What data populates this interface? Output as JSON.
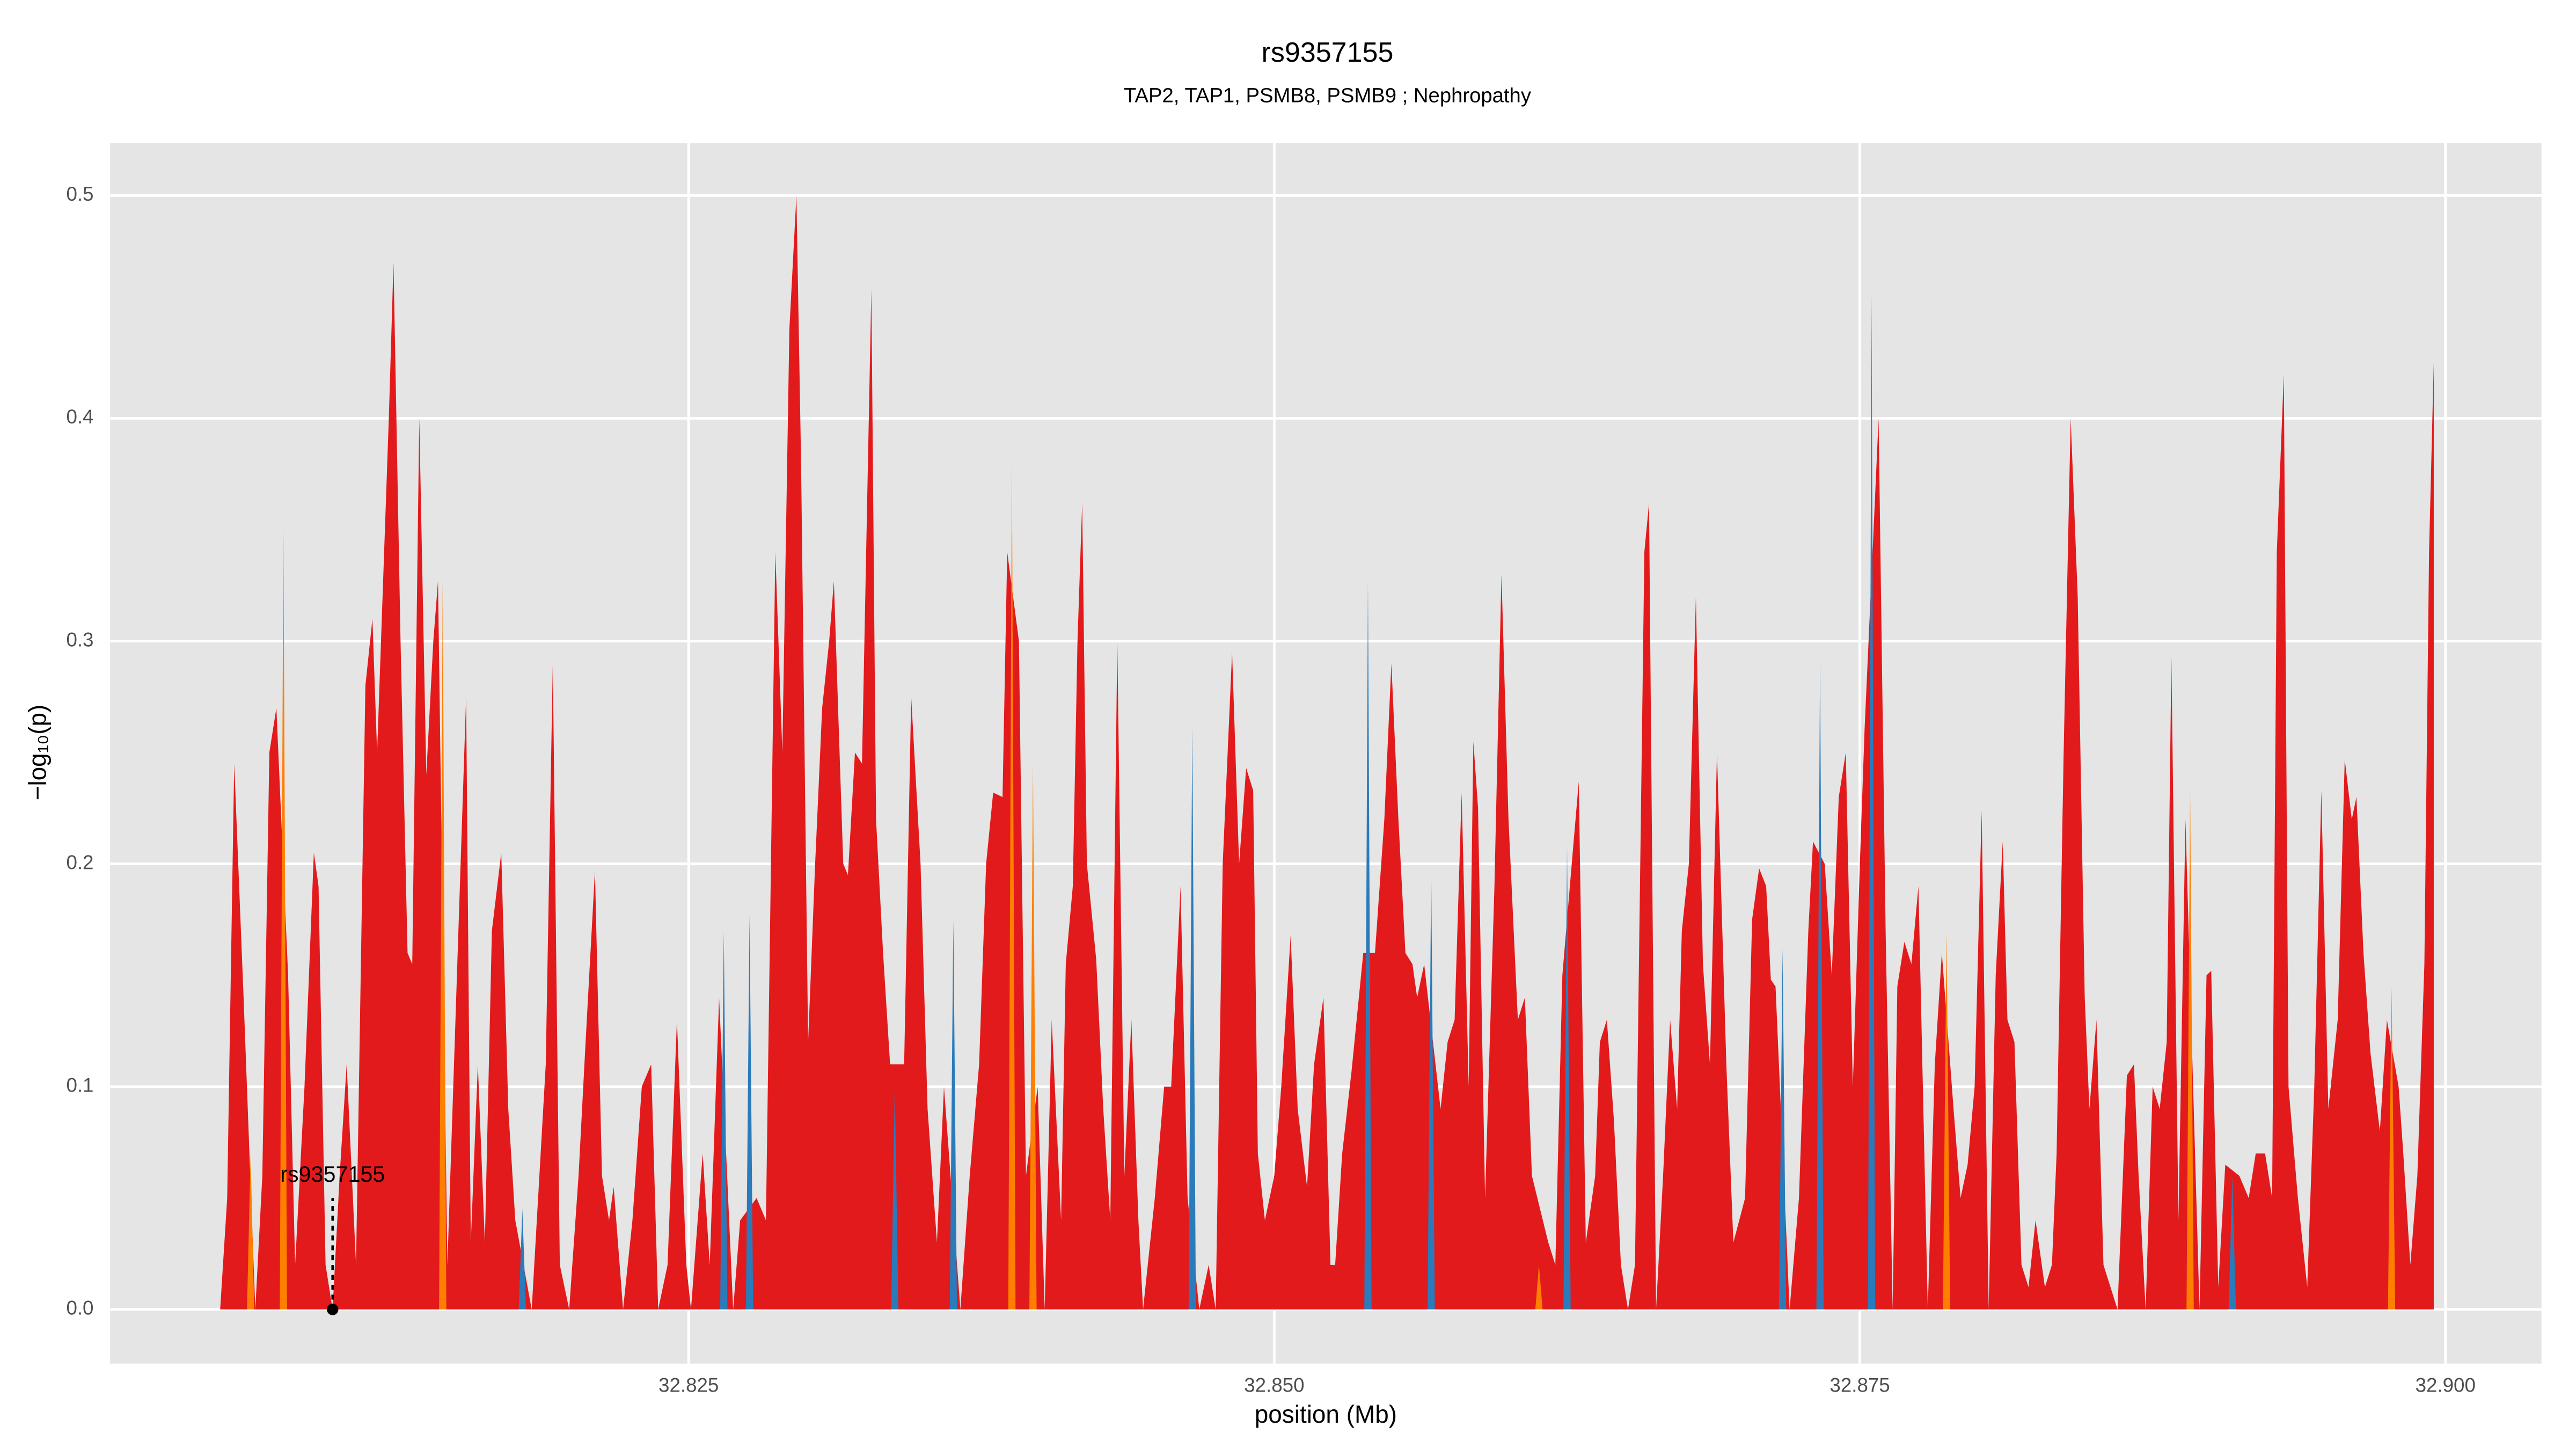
{
  "chart_data": {
    "type": "area",
    "title": "rs9357155",
    "subtitle": "TAP2, TAP1, PSMB8, PSMB9 ; Nephropathy",
    "x_label": "position (Mb)",
    "y_label": "−log₁₀(p)",
    "xlim": [
      32.8003,
      32.9041
    ],
    "ylim": [
      -0.0243,
      0.5236
    ],
    "xticks": [
      32.825,
      {
        "value": 32.85,
        "label": "32.850"
      },
      32.875,
      {
        "value": 32.9,
        "label": "32.900"
      }
    ],
    "yticks": [
      {
        "value": 0,
        "label": "0.0"
      },
      0.1,
      0.2,
      0.3,
      0.4,
      0.5
    ],
    "grid": true,
    "series": [
      {
        "color": "#e31a1c",
        "x": [
          32.805,
          32.8053,
          32.8056,
          32.806,
          32.8065,
          32.8068,
          32.8071,
          32.8074,
          32.8079,
          32.8082,
          32.8086,
          32.809,
          32.8092,
          32.8095,
          32.8098,
          32.8101,
          32.8104,
          32.8108,
          32.8112,
          32.8115,
          32.8117,
          32.8122,
          32.8124,
          32.8127,
          32.813,
          32.8132,
          32.8135,
          32.8138,
          32.8141,
          32.8143,
          32.8147,
          32.8155,
          32.8157,
          32.816,
          32.8163,
          32.8166,
          32.817,
          32.8173,
          32.8176,
          32.8183,
          32.8189,
          32.8192,
          32.8195,
          32.8199,
          32.8203,
          32.8206,
          32.821,
          32.8213,
          32.8216,
          32.8218,
          32.8222,
          32.8226,
          32.823,
          32.8234,
          32.8237,
          32.8241,
          32.8245,
          32.8249,
          32.8251,
          32.8256,
          32.8259,
          32.8263,
          32.8269,
          32.8272,
          32.8279,
          32.8283,
          32.8287,
          32.829,
          32.8293,
          32.8296,
          32.8298,
          32.8301,
          32.8304,
          32.8307,
          32.831,
          32.8312,
          32.8316,
          32.8318,
          32.8321,
          32.8324,
          32.8328,
          32.833,
          32.8333,
          32.8336,
          32.8342,
          32.8345,
          32.8349,
          32.8352,
          32.8356,
          32.8359,
          32.8366,
          32.837,
          32.8374,
          32.8377,
          32.838,
          32.8384,
          32.8386,
          32.8391,
          32.8394,
          32.8399,
          32.8402,
          32.8405,
          32.8409,
          32.8411,
          32.8414,
          32.8416,
          32.8418,
          32.842,
          32.8424,
          32.8427,
          32.843,
          32.8433,
          32.8436,
          32.8439,
          32.8442,
          32.8444,
          32.8449,
          32.8453,
          32.8456,
          32.846,
          32.8463,
          32.8468,
          32.8472,
          32.8475,
          32.8478,
          32.8482,
          32.8485,
          32.8488,
          32.8491,
          32.8493,
          32.8496,
          32.85,
          32.8503,
          32.8507,
          32.851,
          32.8514,
          32.8517,
          32.8521,
          32.8524,
          32.8526,
          32.8529,
          32.8533,
          32.8538,
          32.8543,
          32.8547,
          32.855,
          32.8553,
          32.8556,
          32.8559,
          32.8561,
          32.8564,
          32.8571,
          32.8574,
          32.8577,
          32.858,
          32.8583,
          32.8585,
          32.8587,
          32.859,
          32.8594,
          32.8597,
          32.86,
          32.8604,
          32.8607,
          32.861,
          32.8617,
          32.862,
          32.8623,
          32.8627,
          32.863,
          32.8633,
          32.8637,
          32.8639,
          32.8642,
          32.8645,
          32.8648,
          32.8651,
          32.8654,
          32.8658,
          32.866,
          32.8663,
          32.8666,
          32.8669,
          32.8672,
          32.8674,
          32.8677,
          32.868,
          32.8683,
          32.8686,
          32.8689,
          32.8693,
          32.8696,
          32.8701,
          32.8704,
          32.8707,
          32.871,
          32.8712,
          32.8714,
          32.872,
          32.8724,
          32.8728,
          32.873,
          32.8735,
          32.8738,
          32.8741,
          32.8744,
          32.8747,
          32.875,
          32.8752,
          32.8758,
          32.8761,
          32.8764,
          32.8766,
          32.8769,
          32.8772,
          32.8775,
          32.8779,
          32.8782,
          32.8785,
          32.879,
          32.8793,
          32.8796,
          32.8799,
          32.8802,
          32.8805,
          32.8808,
          32.8811,
          32.8813,
          32.8816,
          32.8819,
          32.8822,
          32.8825,
          32.8829,
          32.8832,
          32.8834,
          32.8837,
          32.884,
          32.8843,
          32.8846,
          32.8848,
          32.8851,
          32.8854,
          32.886,
          32.8864,
          32.8867,
          32.8869,
          32.8872,
          32.8875,
          32.8878,
          32.8881,
          32.8883,
          32.8886,
          32.8889,
          32.8895,
          32.8898,
          32.89,
          32.8903,
          32.8906,
          32.8912,
          32.8916,
          32.8919,
          32.8923,
          32.8926,
          32.8928,
          32.8931,
          32.8933,
          32.8937,
          32.8941,
          32.8944,
          32.8947,
          32.895,
          32.8954,
          32.8957,
          32.896,
          32.8962,
          32.8965,
          32.8968,
          32.8972,
          32.8975,
          32.898,
          32.8982,
          32.8985,
          32.8988,
          32.8991,
          32.8993,
          32.8995
        ],
        "values": [
          0,
          0.05,
          0.245,
          0.14,
          0,
          0.06,
          0.25,
          0.27,
          0.15,
          0.02,
          0.1,
          0.205,
          0.19,
          0.02,
          0,
          0.06,
          0.11,
          0.02,
          0.28,
          0.31,
          0.25,
          0.4,
          0.47,
          0.3,
          0.16,
          0.155,
          0.4,
          0.24,
          0.3,
          0.327,
          0.02,
          0.275,
          0.03,
          0.11,
          0.03,
          0.17,
          0.205,
          0.09,
          0.04,
          0,
          0.11,
          0.29,
          0.02,
          0,
          0.06,
          0.12,
          0.197,
          0.06,
          0.04,
          0.055,
          0,
          0.04,
          0.1,
          0.11,
          0,
          0.02,
          0.13,
          0.02,
          0,
          0.07,
          0.02,
          0.14,
          0,
          0.04,
          0.05,
          0.04,
          0.34,
          0.25,
          0.44,
          0.5,
          0.38,
          0.12,
          0.2,
          0.27,
          0.3,
          0.327,
          0.2,
          0.195,
          0.25,
          0.245,
          0.458,
          0.22,
          0.16,
          0.11,
          0.11,
          0.275,
          0.2,
          0.09,
          0.03,
          0.1,
          0,
          0.06,
          0.11,
          0.2,
          0.232,
          0.23,
          0.34,
          0.3,
          0.06,
          0.1,
          0,
          0.13,
          0.04,
          0.155,
          0.19,
          0.3,
          0.362,
          0.2,
          0.157,
          0.09,
          0.04,
          0.3,
          0.06,
          0.13,
          0.04,
          0,
          0.05,
          0.1,
          0.1,
          0.19,
          0.05,
          0,
          0.02,
          0,
          0.2,
          0.295,
          0.2,
          0.243,
          0.233,
          0.07,
          0.04,
          0.06,
          0.1,
          0.168,
          0.09,
          0.055,
          0.11,
          0.14,
          0.02,
          0.02,
          0.07,
          0.107,
          0.16,
          0.16,
          0.22,
          0.29,
          0.22,
          0.16,
          0.155,
          0.14,
          0.155,
          0.09,
          0.12,
          0.13,
          0.232,
          0.1,
          0.255,
          0.225,
          0.05,
          0.19,
          0.33,
          0.22,
          0.13,
          0.14,
          0.06,
          0.03,
          0.02,
          0.15,
          0.2,
          0.237,
          0.03,
          0.06,
          0.12,
          0.13,
          0.085,
          0.02,
          0,
          0.02,
          0.34,
          0.362,
          0,
          0.06,
          0.13,
          0.09,
          0.17,
          0.2,
          0.32,
          0.155,
          0.11,
          0.25,
          0.11,
          0.03,
          0.05,
          0.175,
          0.198,
          0.19,
          0.148,
          0.145,
          0,
          0.05,
          0.17,
          0.21,
          0.2,
          0.15,
          0.23,
          0.25,
          0.1,
          0.2,
          0.26,
          0.4,
          0.17,
          0,
          0.145,
          0.165,
          0.155,
          0.19,
          0,
          0.11,
          0.16,
          0.09,
          0.05,
          0.065,
          0.1,
          0.224,
          0,
          0.15,
          0.21,
          0.13,
          0.12,
          0.02,
          0.01,
          0.04,
          0.01,
          0.02,
          0.07,
          0.25,
          0.4,
          0.32,
          0.14,
          0.09,
          0.13,
          0.02,
          0,
          0.105,
          0.11,
          0.06,
          0,
          0.1,
          0.09,
          0.12,
          0.293,
          0.04,
          0.22,
          0,
          0.15,
          0.152,
          0.01,
          0.065,
          0.06,
          0.05,
          0.07,
          0.07,
          0.05,
          0.34,
          0.42,
          0.1,
          0.05,
          0.01,
          0.1,
          0.233,
          0.09,
          0.13,
          0.247,
          0.22,
          0.23,
          0.16,
          0.115,
          0.08,
          0.13,
          0.1,
          0.07,
          0.02,
          0.06,
          0.155,
          0.34,
          0.425
        ]
      },
      {
        "color": "#2b7bba",
        "x": [
          32.8179,
          32.8265,
          32.8276,
          32.8338,
          32.8363,
          32.8465,
          32.854,
          32.8567,
          32.8625,
          32.8717,
          32.8733,
          32.8755,
          32.8909
        ],
        "values": [
          0.045,
          0.17,
          0.177,
          0.1,
          0.175,
          0.262,
          0.327,
          0.197,
          0.208,
          0.162,
          0.292,
          0.455,
          0.06
        ]
      },
      {
        "color": "#ff7f00",
        "x": [
          32.8063,
          32.8077,
          32.8145,
          32.8388,
          32.8397,
          32.8613,
          32.8787,
          32.8891,
          32.8977
        ],
        "values": [
          0.07,
          0.35,
          0.327,
          0.382,
          0.245,
          0.02,
          0.17,
          0.233,
          0.145
        ]
      }
    ],
    "annotation": {
      "label": "rs9357155",
      "x": 32.8098,
      "y": 0
    }
  }
}
